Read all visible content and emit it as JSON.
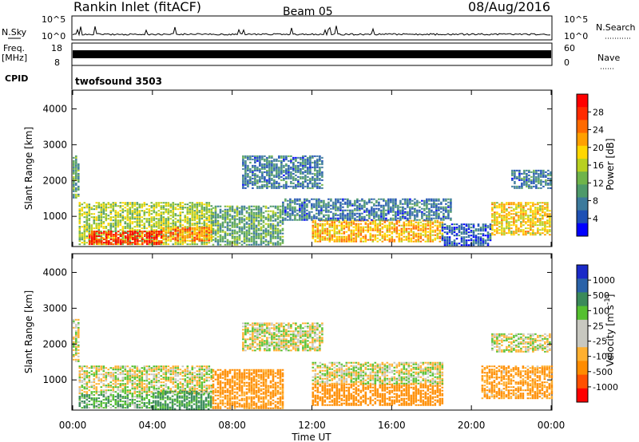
{
  "header": {
    "station": "Rankin Inlet (fitACF)",
    "beam": "Beam 05",
    "date": "08/Aug/2016"
  },
  "summary": {
    "nsky_label": "N.Sky",
    "nsky_ticks": [
      "10^5",
      "10^0"
    ],
    "nsearch_label": "N.Search",
    "freq_label": "Freq.",
    "freq_unit": "[MHz]",
    "freq_ticks": [
      "18",
      "8"
    ],
    "nave_label": "Nave",
    "nave_ticks": [
      "60",
      "0"
    ],
    "cpid_label": "CPID",
    "cpid_value": "twofsound 3503"
  },
  "colors": {
    "frame": "#000000",
    "power_scale": [
      "#0000ff",
      "#1e50b4",
      "#3c7a9c",
      "#4e9a6a",
      "#6fb44a",
      "#b8d020",
      "#ffd700",
      "#ffa000",
      "#ff6a00",
      "#ff2a00",
      "#ff0000"
    ],
    "velocity_scale": [
      "#ff0000",
      "#ff5000",
      "#ff8c00",
      "#ffb030",
      "#c8c8c0",
      "#c8c8c0",
      "#55c030",
      "#3a8a5a",
      "#2a62a8",
      "#1a2ac8"
    ]
  },
  "chart_data": [
    {
      "type": "heatmap",
      "title": "",
      "xlabel": "",
      "ylabel": "Slant Range [km]",
      "x_range": [
        "00:00",
        "24:00"
      ],
      "ylim": [
        180,
        4500
      ],
      "y_ticks": [
        1000,
        2000,
        3000,
        4000
      ],
      "colorbar": {
        "label": "Power [dB]",
        "ticks": [
          4,
          8,
          12,
          16,
          20,
          24,
          28
        ],
        "range": [
          0,
          30
        ]
      },
      "regions": [
        {
          "t_start": 0.0,
          "t_end": 0.3,
          "r_min": 1500,
          "r_max": 2700,
          "value": 10
        },
        {
          "t_start": 0.3,
          "t_end": 7.0,
          "r_min": 200,
          "r_max": 1400,
          "value": 14
        },
        {
          "t_start": 0.8,
          "t_end": 4.5,
          "r_min": 200,
          "r_max": 600,
          "value": 28
        },
        {
          "t_start": 4.5,
          "t_end": 7.0,
          "r_min": 300,
          "r_max": 700,
          "value": 22
        },
        {
          "t_start": 7.0,
          "t_end": 10.5,
          "r_min": 200,
          "r_max": 1300,
          "value": 10
        },
        {
          "t_start": 8.5,
          "t_end": 12.5,
          "r_min": 1800,
          "r_max": 2700,
          "value": 6
        },
        {
          "t_start": 12.0,
          "t_end": 18.5,
          "r_min": 300,
          "r_max": 900,
          "value": 20
        },
        {
          "t_start": 10.5,
          "t_end": 19.0,
          "r_min": 900,
          "r_max": 1500,
          "value": 6
        },
        {
          "t_start": 18.5,
          "t_end": 21.0,
          "r_min": 200,
          "r_max": 800,
          "value": 4
        },
        {
          "t_start": 21.0,
          "t_end": 24.0,
          "r_min": 500,
          "r_max": 1400,
          "value": 18
        },
        {
          "t_start": 22.0,
          "t_end": 24.0,
          "r_min": 1800,
          "r_max": 2300,
          "value": 6
        }
      ]
    },
    {
      "type": "heatmap",
      "title": "",
      "xlabel": "Time UT",
      "ylabel": "Slant Range [km]",
      "x_ticks": [
        "00:00",
        "04:00",
        "08:00",
        "12:00",
        "16:00",
        "20:00",
        "00:00"
      ],
      "ylim": [
        180,
        4500
      ],
      "y_ticks": [
        1000,
        2000,
        3000,
        4000
      ],
      "colorbar": {
        "label": "Velocity [m s^-1]",
        "ticks": [
          1000,
          500,
          100,
          25,
          -25,
          -100,
          -500,
          -1000
        ]
      },
      "regions": [
        {
          "t_start": 0.0,
          "t_end": 0.3,
          "r_min": 1500,
          "r_max": 2700,
          "value": 0
        },
        {
          "t_start": 0.3,
          "t_end": 7.0,
          "r_min": 600,
          "r_max": 1400,
          "value": 0
        },
        {
          "t_start": 0.3,
          "t_end": 4.0,
          "r_min": 200,
          "r_max": 600,
          "value": 80
        },
        {
          "t_start": 4.0,
          "t_end": 7.0,
          "r_min": 200,
          "r_max": 700,
          "value": 150
        },
        {
          "t_start": 7.0,
          "t_end": 10.5,
          "r_min": 200,
          "r_max": 1300,
          "value": -150
        },
        {
          "t_start": 8.5,
          "t_end": 12.5,
          "r_min": 1800,
          "r_max": 2600,
          "value": 0
        },
        {
          "t_start": 12.0,
          "t_end": 18.5,
          "r_min": 300,
          "r_max": 900,
          "value": -200
        },
        {
          "t_start": 12.0,
          "t_end": 18.5,
          "r_min": 900,
          "r_max": 1500,
          "value": 0
        },
        {
          "t_start": 20.5,
          "t_end": 24.0,
          "r_min": 500,
          "r_max": 1400,
          "value": -120
        },
        {
          "t_start": 21.0,
          "t_end": 24.0,
          "r_min": 1800,
          "r_max": 2300,
          "value": 0
        }
      ]
    }
  ]
}
